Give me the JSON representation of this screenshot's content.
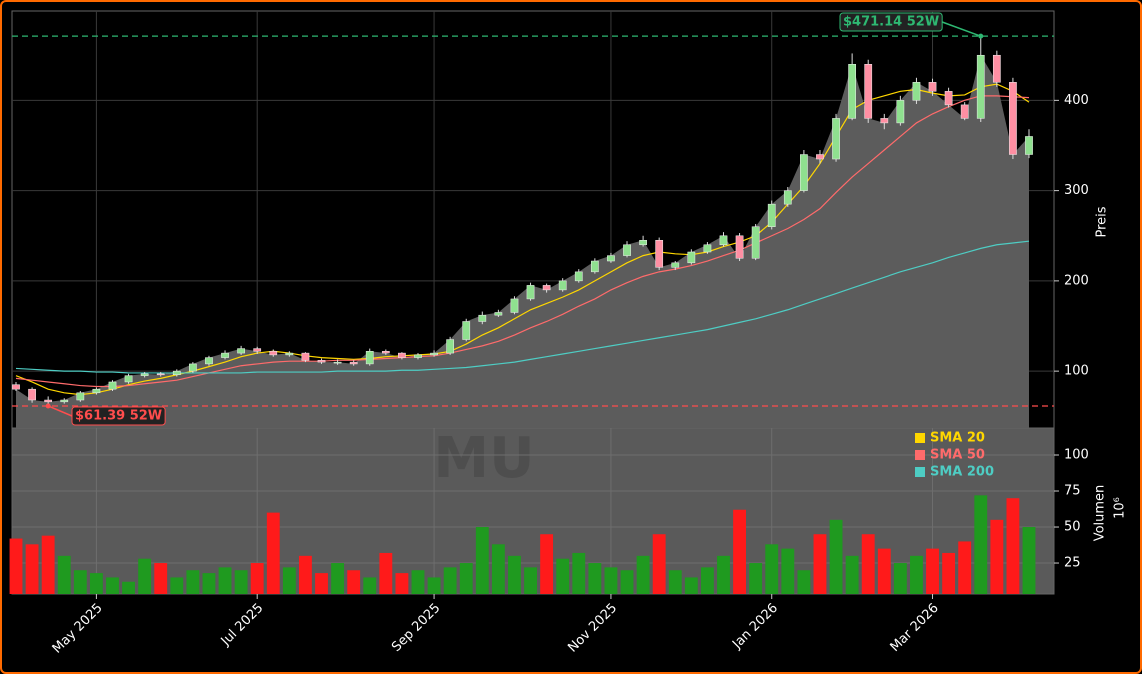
{
  "chart_data": {
    "type": "candlestick",
    "watermark": "MU",
    "categories": [
      null,
      null,
      null,
      null,
      null,
      "May 2025",
      null,
      null,
      null,
      null,
      null,
      null,
      null,
      null,
      null,
      "Jul 2025",
      null,
      null,
      null,
      null,
      null,
      null,
      null,
      null,
      null,
      null,
      "Sep 2025",
      null,
      null,
      null,
      null,
      null,
      null,
      null,
      null,
      null,
      null,
      "Nov 2025",
      null,
      null,
      null,
      null,
      null,
      null,
      null,
      null,
      null,
      "Jan 2026",
      null,
      null,
      null,
      null,
      null,
      null,
      null,
      null,
      null,
      "Mar 2026",
      null,
      null,
      null,
      null,
      null,
      null
    ],
    "open": [
      85,
      80,
      68,
      66,
      68,
      76,
      80,
      88,
      95,
      97,
      96,
      100,
      108,
      115,
      120,
      125,
      122,
      118,
      120,
      112,
      110,
      110,
      108,
      122,
      120,
      115,
      118,
      120,
      135,
      155,
      162,
      165,
      180,
      195,
      190,
      200,
      210,
      222,
      228,
      240,
      245,
      215,
      220,
      232,
      240,
      250,
      225,
      260,
      285,
      300,
      340,
      335,
      380,
      440,
      380,
      375,
      400,
      420,
      410,
      395,
      380,
      450,
      420,
      340
    ],
    "high": [
      88,
      82,
      72,
      70,
      78,
      82,
      90,
      97,
      99,
      99,
      102,
      110,
      117,
      123,
      128,
      127,
      124,
      122,
      121,
      114,
      113,
      112,
      125,
      124,
      121,
      120,
      123,
      138,
      158,
      166,
      168,
      183,
      198,
      197,
      203,
      213,
      225,
      231,
      244,
      250,
      248,
      222,
      235,
      243,
      254,
      253,
      263,
      289,
      304,
      345,
      345,
      385,
      452,
      445,
      385,
      405,
      425,
      424,
      414,
      398,
      471.14,
      455,
      425,
      368
    ],
    "low": [
      78,
      65,
      61.39,
      64,
      66,
      74,
      78,
      86,
      93,
      94,
      94,
      98,
      106,
      113,
      118,
      119,
      116,
      116,
      110,
      108,
      107,
      106,
      106,
      118,
      113,
      113,
      116,
      118,
      133,
      152,
      160,
      163,
      178,
      187,
      188,
      198,
      208,
      220,
      226,
      238,
      212,
      212,
      218,
      230,
      238,
      222,
      223,
      257,
      282,
      298,
      330,
      332,
      378,
      375,
      368,
      372,
      396,
      405,
      392,
      378,
      376,
      415,
      335,
      336
    ],
    "close": [
      80,
      68,
      66,
      68,
      76,
      80,
      88,
      95,
      97,
      96,
      100,
      108,
      115,
      120,
      125,
      122,
      118,
      120,
      112,
      110,
      110,
      108,
      122,
      120,
      115,
      118,
      120,
      135,
      155,
      162,
      165,
      180,
      195,
      190,
      200,
      210,
      222,
      228,
      240,
      245,
      215,
      220,
      232,
      240,
      250,
      225,
      260,
      285,
      300,
      340,
      335,
      380,
      440,
      380,
      375,
      400,
      420,
      410,
      395,
      380,
      450,
      420,
      340,
      360
    ],
    "up_color": "#8fe08f",
    "down_color": "#ff8fa3",
    "area_color": "#5c5c5c",
    "series": [
      {
        "name": "SMA 20",
        "color": "#ffd700",
        "values": [
          95,
          88,
          80,
          76,
          74,
          76,
          80,
          85,
          89,
          92,
          96,
          100,
          105,
          110,
          116,
          120,
          122,
          120,
          117,
          115,
          114,
          113,
          114,
          116,
          117,
          118,
          119,
          122,
          130,
          140,
          148,
          158,
          168,
          175,
          182,
          190,
          200,
          210,
          220,
          228,
          232,
          230,
          229,
          232,
          238,
          243,
          250,
          265,
          285,
          305,
          330,
          360,
          390,
          400,
          405,
          410,
          412,
          408,
          405,
          406,
          415,
          418,
          410,
          398
        ]
      },
      {
        "name": "SMA 50",
        "color": "#ff6b6b",
        "values": [
          92,
          90,
          88,
          86,
          84,
          83,
          83,
          84,
          86,
          88,
          90,
          94,
          98,
          102,
          106,
          108,
          110,
          111,
          111,
          111,
          112,
          112,
          113,
          114,
          115,
          116,
          117,
          120,
          124,
          128,
          133,
          140,
          148,
          155,
          163,
          172,
          180,
          190,
          198,
          205,
          210,
          213,
          217,
          222,
          228,
          234,
          242,
          250,
          258,
          268,
          280,
          298,
          315,
          330,
          345,
          360,
          375,
          385,
          393,
          400,
          405,
          405,
          404,
          403
        ]
      },
      {
        "name": "SMA 200",
        "color": "#4ecdc4",
        "values": [
          103,
          102,
          101,
          100,
          100,
          99,
          99,
          98,
          98,
          98,
          98,
          98,
          98,
          98,
          98,
          99,
          99,
          99,
          99,
          99,
          100,
          100,
          100,
          100,
          101,
          101,
          102,
          103,
          104,
          106,
          108,
          110,
          113,
          116,
          119,
          122,
          125,
          128,
          131,
          134,
          137,
          140,
          143,
          146,
          150,
          154,
          158,
          163,
          168,
          174,
          180,
          186,
          192,
          198,
          204,
          210,
          215,
          220,
          226,
          231,
          236,
          240,
          242,
          244
        ]
      }
    ],
    "annotations": [
      {
        "text": "$471.14 52W",
        "value": 471.14,
        "color": "#2eb872"
      },
      {
        "text": "$61.39 52W",
        "value": 61.39,
        "color": "#ff4d4d"
      }
    ],
    "ylabel": "Preis",
    "ylim": [
      37,
      499
    ],
    "yticks": [
      100,
      200,
      300,
      400
    ],
    "grid": true,
    "legend": "upper-right",
    "volume": {
      "label": "Volumen",
      "unit": "10⁶",
      "up_color": "#1f9a1f",
      "down_color": "#ff1a1a",
      "values": [
        42,
        38,
        44,
        30,
        20,
        18,
        15,
        12,
        28,
        25,
        15,
        20,
        18,
        22,
        20,
        25,
        60,
        22,
        30,
        18,
        25,
        20,
        15,
        32,
        18,
        20,
        15,
        22,
        25,
        50,
        38,
        30,
        22,
        45,
        28,
        32,
        25,
        22,
        20,
        30,
        45,
        20,
        15,
        22,
        30,
        62,
        25,
        38,
        35,
        20,
        45,
        55,
        30,
        45,
        35,
        25,
        30,
        35,
        32,
        40,
        72,
        55,
        70,
        50
      ],
      "ylim": [
        3.5,
        118.75
      ],
      "yticks": [
        25,
        50,
        75,
        100
      ]
    }
  }
}
